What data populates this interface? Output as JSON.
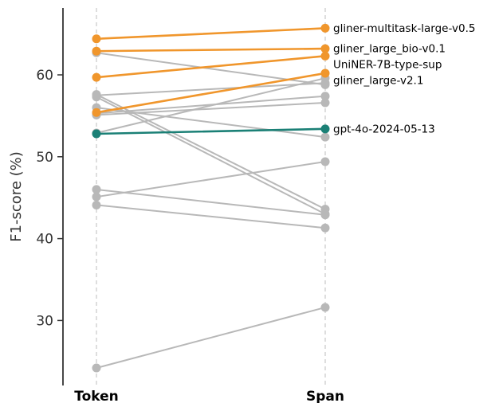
{
  "chart_data": {
    "type": "line",
    "categories": [
      "Token",
      "Span"
    ],
    "ylabel": "F1-score (%)",
    "xlabel": "",
    "ylim": [
      21.5,
      69
    ],
    "yticks": [
      30,
      40,
      50,
      60
    ],
    "grid": "vertical dashed lines at categories",
    "colors": {
      "highlight": "#f0962c",
      "reference": "#1b8076",
      "other": "#b8b8b8",
      "axis": "#333333",
      "grid": "#cccccc"
    },
    "series": [
      {
        "name": "gliner-multitask-large-v0.5",
        "group": "highlight",
        "values": [
          64.4,
          65.7
        ]
      },
      {
        "name": "gliner_large_bio-v0.1",
        "group": "highlight",
        "values": [
          62.9,
          63.2
        ]
      },
      {
        "name": "UniNER-7B-type-sup",
        "group": "highlight",
        "values": [
          59.7,
          62.3
        ]
      },
      {
        "name": "gliner_large-v2.1",
        "group": "highlight",
        "values": [
          55.4,
          60.2
        ]
      },
      {
        "name": "gpt-4o-2024-05-13",
        "group": "reference",
        "values": [
          52.8,
          53.4
        ]
      },
      {
        "group": "other",
        "values": [
          62.7,
          58.8
        ]
      },
      {
        "group": "other",
        "values": [
          57.6,
          43.6
        ]
      },
      {
        "group": "other",
        "values": [
          57.3,
          43.0
        ]
      },
      {
        "group": "other",
        "values": [
          57.5,
          59.0
        ]
      },
      {
        "group": "other",
        "values": [
          56.0,
          52.4
        ]
      },
      {
        "group": "other",
        "values": [
          55.3,
          57.4
        ]
      },
      {
        "group": "other",
        "values": [
          55.1,
          56.6
        ]
      },
      {
        "group": "other",
        "values": [
          52.9,
          59.6
        ]
      },
      {
        "group": "other",
        "values": [
          46.0,
          42.9
        ]
      },
      {
        "group": "other",
        "values": [
          45.1,
          49.4
        ]
      },
      {
        "group": "other",
        "values": [
          44.1,
          41.3
        ]
      },
      {
        "group": "other",
        "values": [
          24.2,
          31.6
        ]
      }
    ]
  }
}
